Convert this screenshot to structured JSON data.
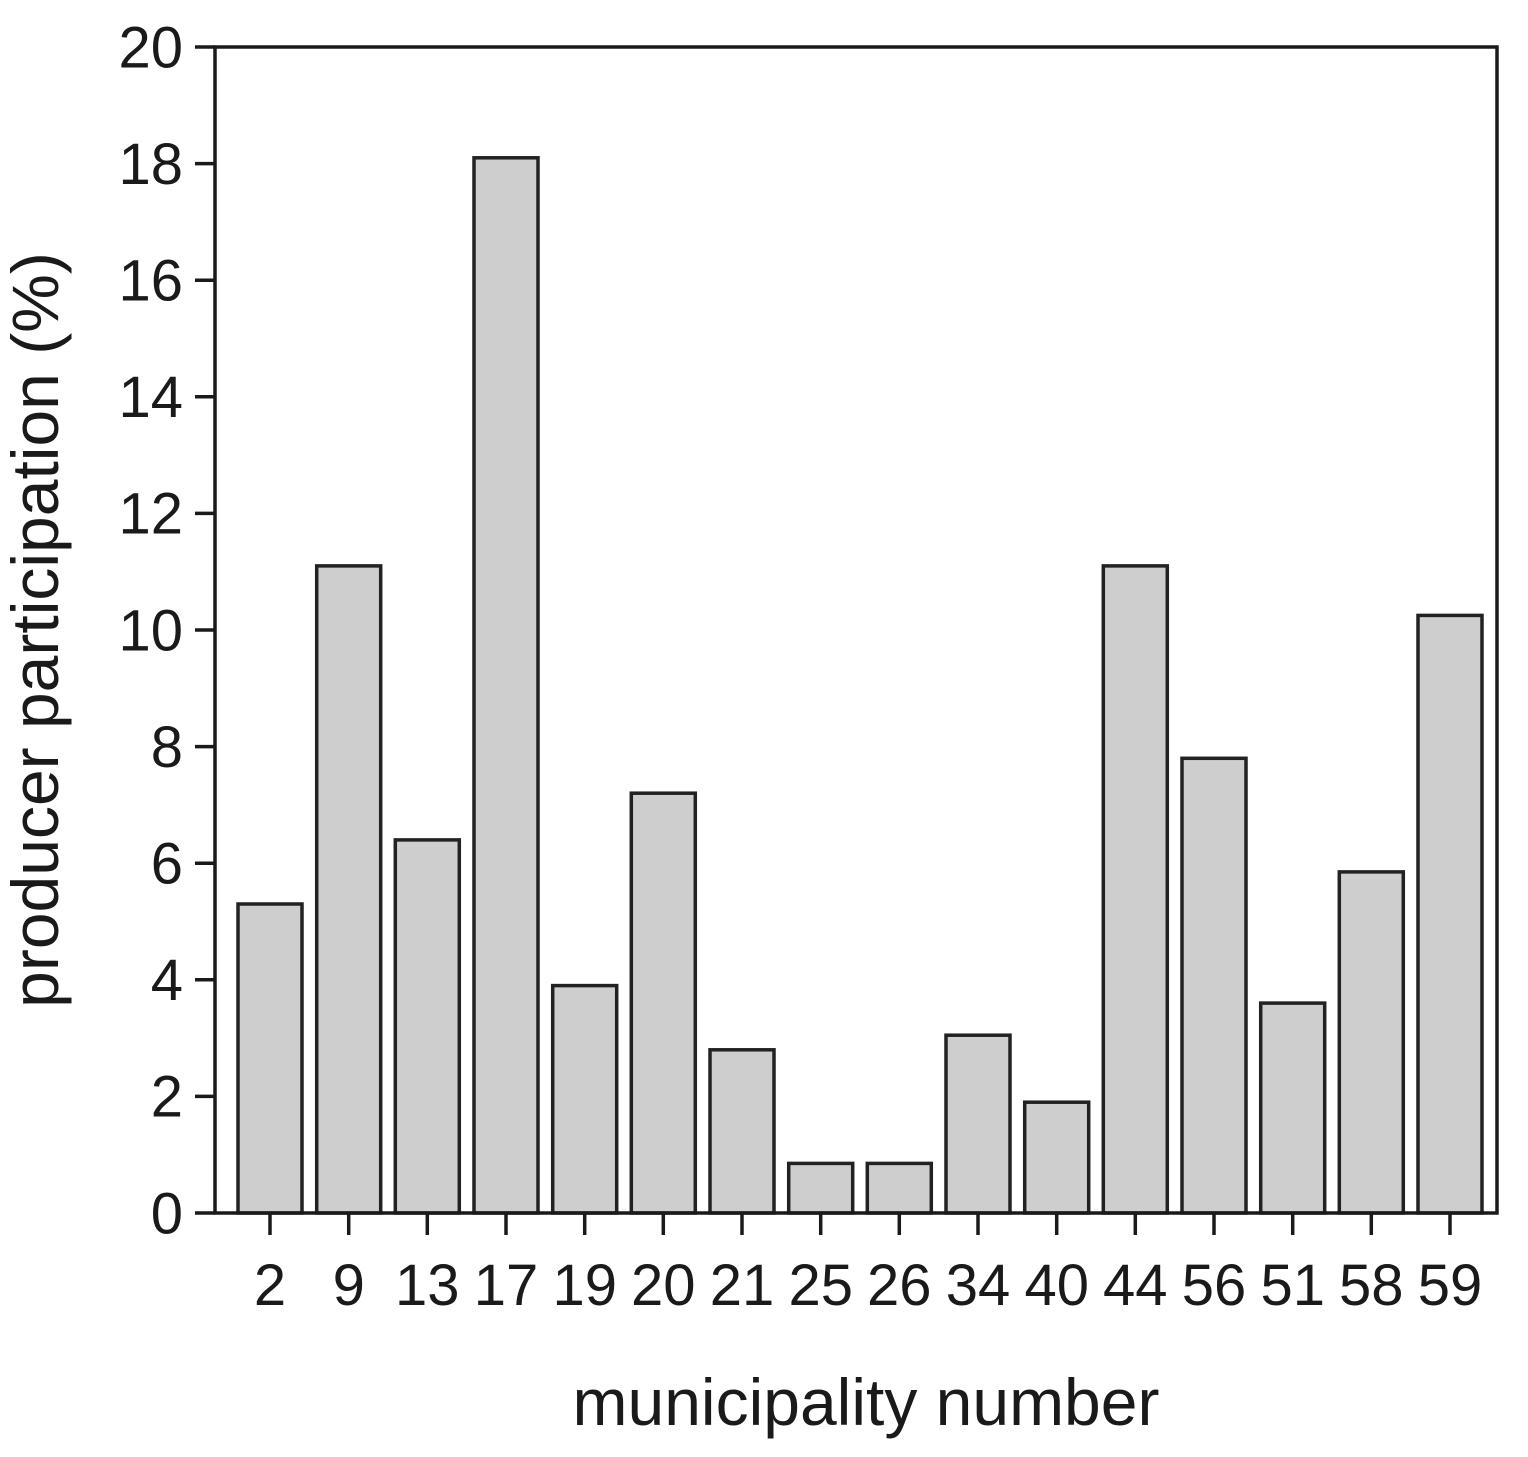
{
  "figure": {
    "background": "#ffffff"
  },
  "chart_data": {
    "type": "bar",
    "title": "",
    "xlabel": "municipality number",
    "ylabel": "producer participation (%)",
    "categories": [
      "2",
      "9",
      "13",
      "17",
      "19",
      "20",
      "21",
      "25",
      "26",
      "34",
      "40",
      "44",
      "56",
      "51",
      "58",
      "59"
    ],
    "values": [
      5.3,
      11.1,
      6.4,
      18.1,
      3.9,
      7.2,
      2.8,
      0.85,
      0.85,
      3.05,
      1.9,
      11.1,
      7.8,
      3.6,
      5.85,
      10.25
    ],
    "ylim": [
      0,
      20
    ],
    "yticks": [
      0,
      2,
      4,
      6,
      8,
      10,
      12,
      14,
      16,
      18,
      20
    ],
    "grid": false,
    "legend": null,
    "bar_fill": "#cecece",
    "bar_stroke": "#222222",
    "axis_color": "#1a1a1a"
  }
}
